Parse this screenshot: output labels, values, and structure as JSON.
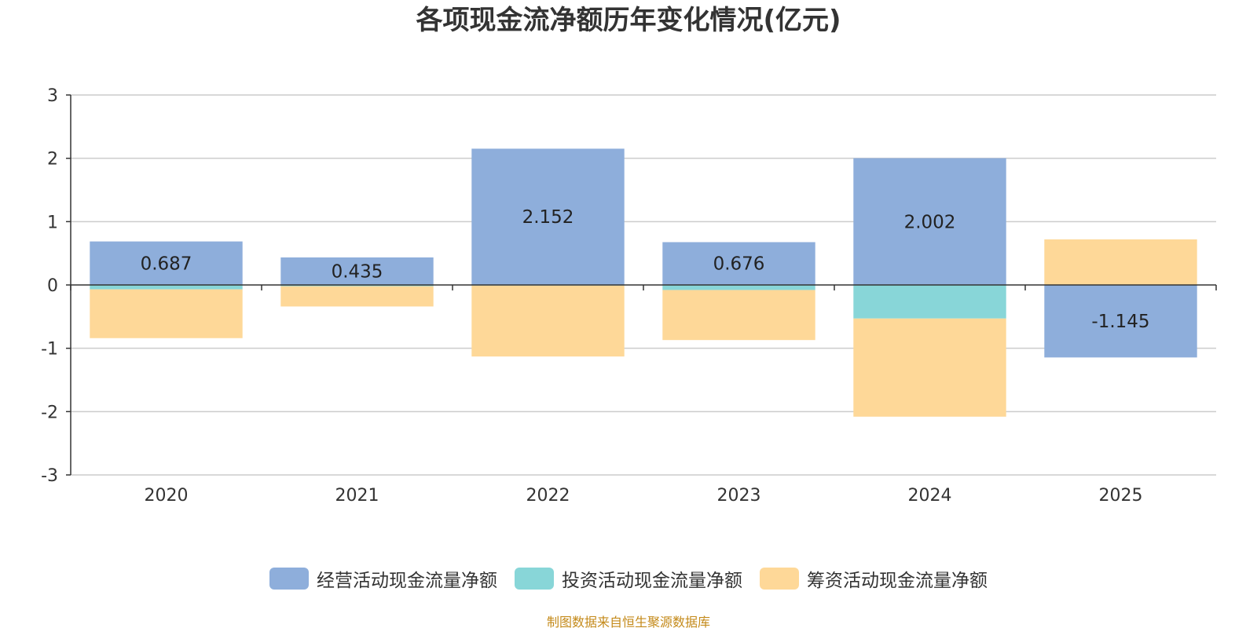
{
  "chart_data": {
    "type": "bar",
    "stacked": true,
    "title": "各项现金流净额历年变化情况(亿元)",
    "xlabel": "",
    "ylabel": "",
    "ylim": [
      -3,
      3
    ],
    "yticks": [
      3,
      2,
      1,
      0,
      -1,
      -2,
      -3
    ],
    "categories": [
      "2020",
      "2021",
      "2022",
      "2023",
      "2024",
      "2025"
    ],
    "series": [
      {
        "name": "经营活动现金流量净额",
        "color": "#8eaedb",
        "values": [
          0.687,
          0.435,
          2.152,
          0.676,
          2.002,
          -1.145
        ],
        "labels": [
          "0.687",
          "0.435",
          "2.152",
          "0.676",
          "2.002",
          "-1.145"
        ]
      },
      {
        "name": "投资活动现金流量净额",
        "color": "#88d6d8",
        "values": [
          -0.07,
          -0.02,
          -0.01,
          -0.08,
          -0.53,
          0.0
        ]
      },
      {
        "name": "筹资活动现金流量净额",
        "color": "#fed898",
        "values": [
          -0.77,
          -0.32,
          -1.12,
          -0.79,
          -1.55,
          0.72
        ]
      }
    ],
    "legend_position": "bottom",
    "grid": true,
    "source_note": "制图数据来自恒生聚源数据库"
  }
}
